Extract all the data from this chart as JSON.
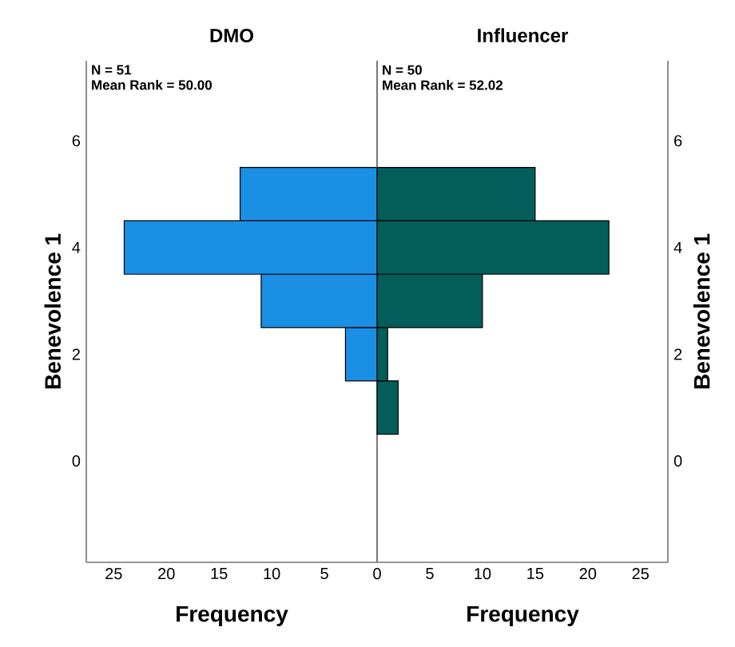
{
  "chart_data": [
    {
      "type": "histogram",
      "orientation": "horizontal",
      "title": "DMO",
      "xlabel": "Frequency",
      "ylabel": "Benevolence 1",
      "annotations": [
        "N = 51",
        "Mean Rank = 50.00"
      ],
      "bins": [
        0.5,
        1.5,
        2.5,
        3.5,
        4.5,
        5.5
      ],
      "values": [
        0,
        3,
        11,
        24,
        13
      ],
      "color": "#1a8fe3",
      "xlim": [
        27.6,
        0
      ],
      "xticks": [
        25,
        20,
        15,
        10,
        5
      ],
      "ylim": [
        -1.9,
        7.5
      ],
      "yticks": [
        0,
        2,
        4,
        6
      ]
    },
    {
      "type": "histogram",
      "orientation": "horizontal",
      "title": "Influencer",
      "xlabel": "Frequency",
      "ylabel": "Benevolence 1",
      "annotations": [
        "N = 50",
        "Mean Rank = 52.02"
      ],
      "bins": [
        0.5,
        1.5,
        2.5,
        3.5,
        4.5,
        5.5
      ],
      "values": [
        2,
        1,
        10,
        22,
        15
      ],
      "color": "#035d5a",
      "xlim": [
        0,
        27.6
      ],
      "xticks": [
        0,
        5,
        10,
        15,
        20,
        25
      ],
      "ylim": [
        -1.9,
        7.5
      ],
      "yticks": [
        0,
        2,
        4,
        6
      ]
    }
  ]
}
